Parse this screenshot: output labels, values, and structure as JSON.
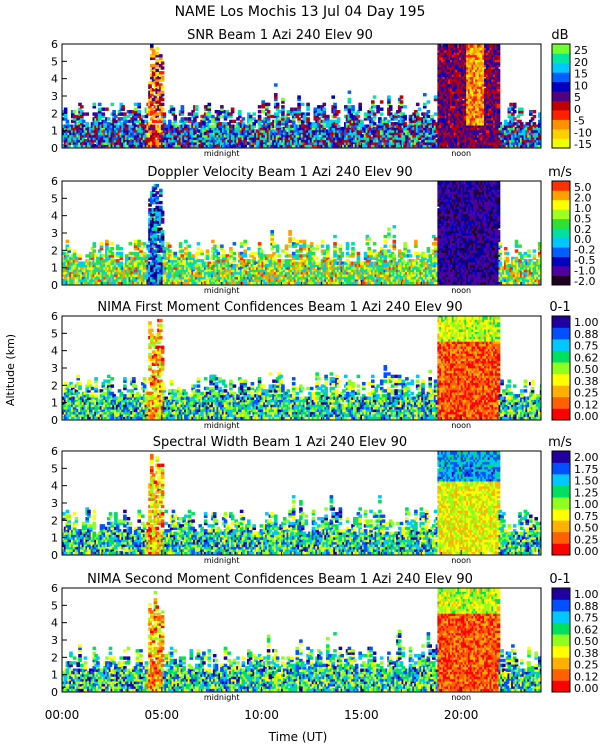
{
  "header": {
    "title": "NAME Los Mochis    13 Jul 04 Day 195"
  },
  "x_axis": {
    "label": "Time (UT)",
    "range_hours": [
      0,
      24
    ],
    "tick_labels": [
      {
        "hour": 0,
        "label": "00:00"
      },
      {
        "hour": 5,
        "label": "05:00"
      },
      {
        "hour": 10,
        "label": "10:00"
      },
      {
        "hour": 15,
        "label": "15:00"
      },
      {
        "hour": 20,
        "label": "20:00"
      }
    ],
    "markers": [
      {
        "hour": 8,
        "label": "midnight"
      },
      {
        "hour": 20,
        "label": "noon"
      }
    ]
  },
  "y_axis": {
    "label": "Altitude (km)",
    "range_km": [
      0,
      6
    ],
    "tick_labels": [
      "0",
      "1",
      "2",
      "3",
      "4",
      "5",
      "6"
    ]
  },
  "chart_data": [
    {
      "type": "heatmap",
      "title": "SNR Beam 1 Azi 240 Elev 90",
      "unit": "dB",
      "colorbar_labels": [
        "25",
        "20",
        "15",
        "10",
        "5",
        "0",
        "-5",
        "-10",
        "-15"
      ],
      "colorbar_colors": [
        "#f0ff00",
        "#ffd000",
        "#ff9000",
        "#ff2000",
        "#c00000",
        "#500080",
        "#0000c0",
        "#0060ff",
        "#00c8ff",
        "#00e8a0",
        "#70ff30"
      ],
      "xlim": [
        0,
        24
      ],
      "ylim": [
        0,
        6
      ]
    },
    {
      "type": "heatmap",
      "title": "Doppler Velocity Beam 1 Azi 240 Elev 90",
      "unit": "m/s",
      "colorbar_labels": [
        "5.0",
        "2.0",
        "1.0",
        "0.5",
        "0.2",
        "0.0",
        "-0.2",
        "-0.5",
        "-1.0",
        "-2.0"
      ],
      "colorbar_colors": [
        "#200020",
        "#5000a0",
        "#0000c0",
        "#0060ff",
        "#00c8ff",
        "#00e0a0",
        "#30e030",
        "#a0ff20",
        "#ffff00",
        "#ffa000",
        "#ff3000"
      ],
      "xlim": [
        0,
        24
      ],
      "ylim": [
        0,
        6
      ]
    },
    {
      "type": "heatmap",
      "title": "NIMA First Moment Confidences Beam 1 Azi 240 Elev 90",
      "unit": "0-1",
      "colorbar_labels": [
        "1.00",
        "0.88",
        "0.75",
        "0.62",
        "0.50",
        "0.38",
        "0.25",
        "0.12",
        "0.00"
      ],
      "colorbar_colors": [
        "#ff0000",
        "#ff6000",
        "#ffb000",
        "#ffff00",
        "#90ff20",
        "#00e060",
        "#00c8ff",
        "#0050ff",
        "#2000a0"
      ],
      "xlim": [
        0,
        24
      ],
      "ylim": [
        0,
        6
      ]
    },
    {
      "type": "heatmap",
      "title": "Spectral Width Beam 1 Azi 240 Elev 90",
      "unit": "m/s",
      "colorbar_labels": [
        "2.00",
        "1.75",
        "1.50",
        "1.25",
        "1.00",
        "0.75",
        "0.50",
        "0.25",
        "0.00"
      ],
      "colorbar_colors": [
        "#ff0000",
        "#ff6000",
        "#ffb000",
        "#ffff00",
        "#90ff20",
        "#00e060",
        "#00c8ff",
        "#0050ff",
        "#2000a0"
      ],
      "xlim": [
        0,
        24
      ],
      "ylim": [
        0,
        6
      ]
    },
    {
      "type": "heatmap",
      "title": "NIMA Second Moment Confidences Beam 1 Azi 240 Elev 90",
      "unit": "0-1",
      "colorbar_labels": [
        "1.00",
        "0.88",
        "0.75",
        "0.62",
        "0.50",
        "0.38",
        "0.25",
        "0.12",
        "0.00"
      ],
      "colorbar_colors": [
        "#ff0000",
        "#ff6000",
        "#ffb000",
        "#ffff00",
        "#90ff20",
        "#00e060",
        "#00c8ff",
        "#0050ff",
        "#2000a0"
      ],
      "xlim": [
        0,
        24
      ],
      "ylim": [
        0,
        6
      ]
    }
  ]
}
